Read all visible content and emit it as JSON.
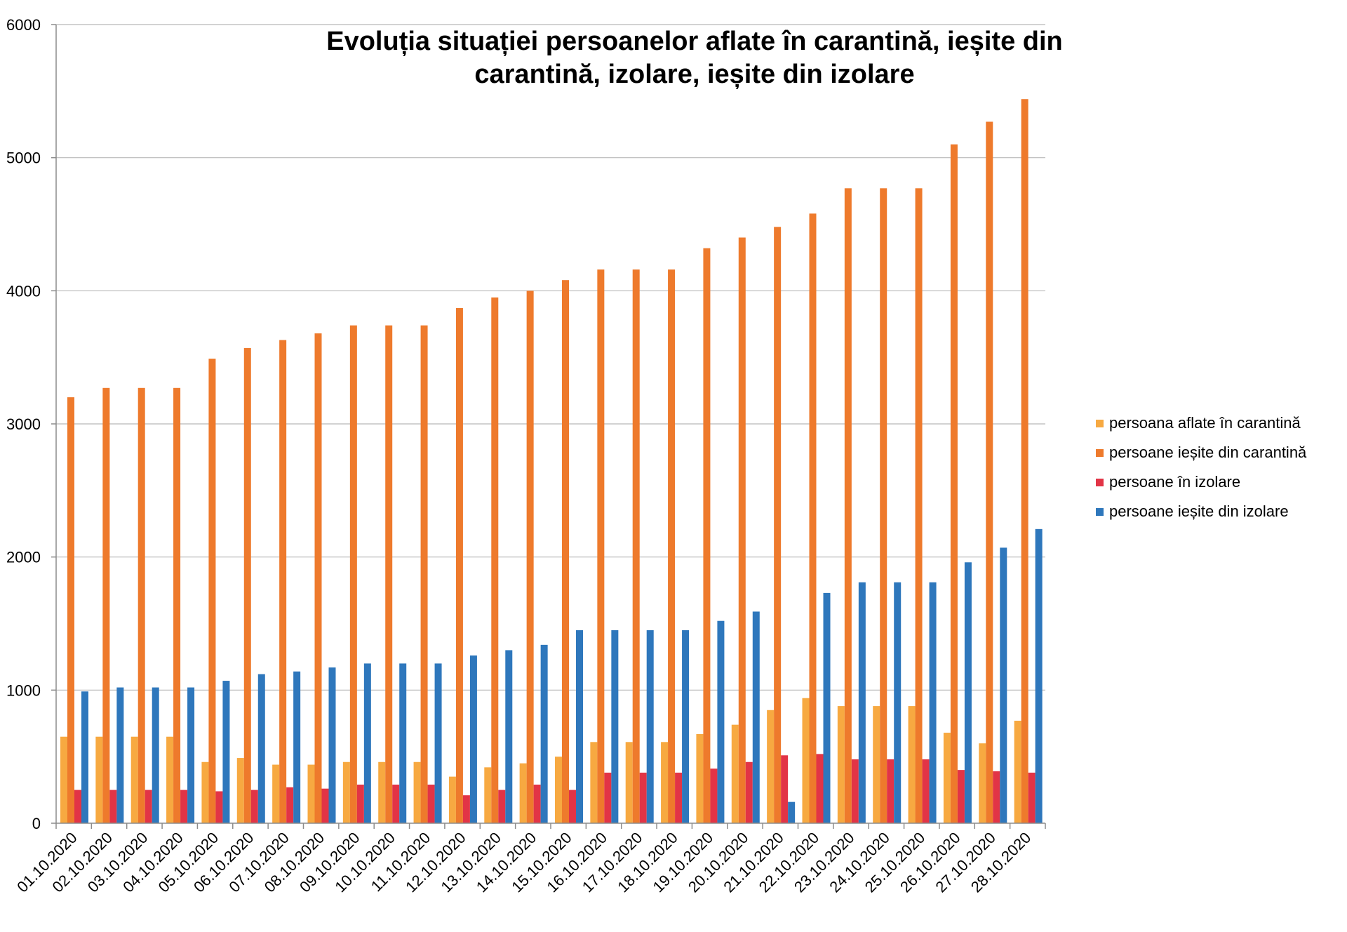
{
  "chart_data": {
    "type": "bar",
    "title": "Evoluția situației persoanelor aflate în carantină, ieșite din carantină, izolare, ieșite din izolare",
    "title_lines": [
      "Evoluția situației persoanelor aflate în carantină, ieșite din",
      "carantină, izolare, ieșite din izolare"
    ],
    "xlabel": "",
    "ylabel": "",
    "ylim": [
      0,
      6000
    ],
    "yticks": [
      "0",
      "1000",
      "2000",
      "3000",
      "4000",
      "5000",
      "6000"
    ],
    "grid": "horizontal",
    "legend_position": "right",
    "categories": [
      "01.10.2020",
      "02.10.2020",
      "03.10.2020",
      "04.10.2020",
      "05.10.2020",
      "06.10.2020",
      "07.10.2020",
      "08.10.2020",
      "09.10.2020",
      "10.10.2020",
      "11.10.2020",
      "12.10.2020",
      "13.10.2020",
      "14.10.2020",
      "15.10.2020",
      "16.10.2020",
      "17.10.2020",
      "18.10.2020",
      "19.10.2020",
      "20.10.2020",
      "21.10.2020",
      "22.10.2020",
      "23.10.2020",
      "24.10.2020",
      "25.10.2020",
      "26.10.2020",
      "27.10.2020",
      "28.10.2020"
    ],
    "series": [
      {
        "name": "persoana aflate în carantină",
        "color": "#F7A941",
        "values": [
          650,
          650,
          650,
          650,
          460,
          490,
          440,
          440,
          460,
          460,
          460,
          350,
          420,
          450,
          500,
          610,
          610,
          610,
          670,
          740,
          850,
          940,
          880,
          880,
          880,
          680,
          600,
          770
        ]
      },
      {
        "name": "persoane ieșite din carantină",
        "color": "#EE7A2C",
        "values": [
          3200,
          3270,
          3270,
          3270,
          3490,
          3570,
          3630,
          3680,
          3740,
          3740,
          3740,
          3870,
          3950,
          4000,
          4080,
          4160,
          4160,
          4160,
          4320,
          4400,
          4480,
          4580,
          4770,
          4770,
          4770,
          5100,
          5270,
          5440
        ]
      },
      {
        "name": "persoane în izolare",
        "color": "#E23446",
        "values": [
          250,
          250,
          250,
          250,
          240,
          250,
          270,
          260,
          290,
          290,
          290,
          210,
          250,
          290,
          250,
          380,
          380,
          380,
          410,
          460,
          510,
          520,
          480,
          480,
          480,
          400,
          390,
          380
        ]
      },
      {
        "name": "persoane ieșite din izolare",
        "color": "#2E77BC",
        "values": [
          990,
          1020,
          1020,
          1020,
          1070,
          1120,
          1140,
          1170,
          1200,
          1200,
          1200,
          1260,
          1300,
          1340,
          1450,
          1450,
          1450,
          1450,
          1520,
          1590,
          160,
          1730,
          1810,
          1810,
          1810,
          1960,
          2070,
          2210
        ]
      }
    ]
  }
}
